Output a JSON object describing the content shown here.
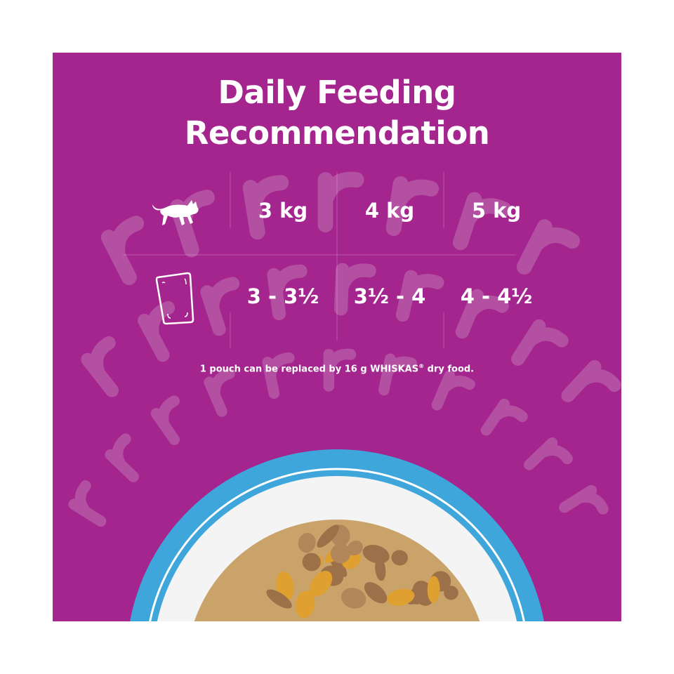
{
  "title_line1": "Daily Feeding",
  "title_line2": "Recommendation",
  "table": {
    "row_icons": [
      "cat-icon",
      "pouch-icon"
    ],
    "weights": [
      "3 kg",
      "4 kg",
      "5 kg"
    ],
    "pouches": [
      "3 - 3½",
      "3½ - 4",
      "4 - 4½"
    ]
  },
  "note": {
    "text_before": "1 pouch can be replaced by 16 g WHISKAS",
    "registered": "®",
    "text_after": " dry food."
  },
  "decoration": {
    "watermark_text": "purrrrrr"
  },
  "colors": {
    "panel": "#A4258E",
    "letters": "#B350A1",
    "bowl_rim": "#3FA6DB",
    "plate": "#F4F4F4",
    "food": "#B58A5E"
  }
}
